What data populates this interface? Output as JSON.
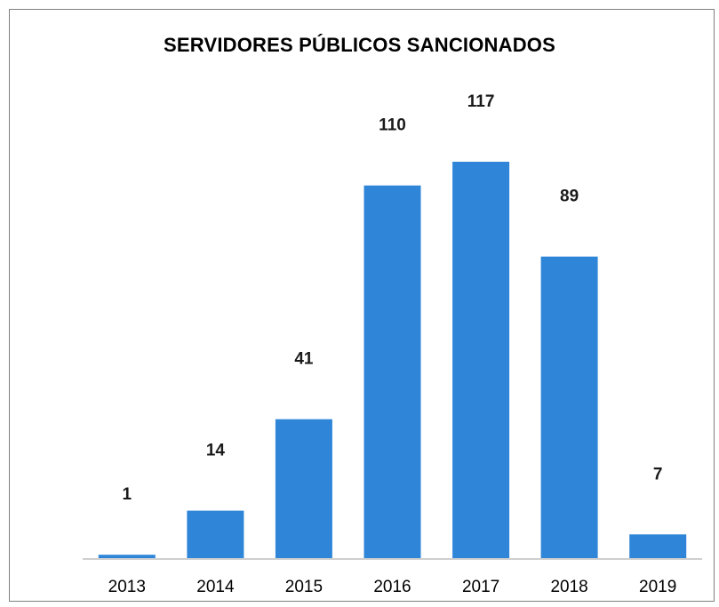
{
  "chart_data": {
    "type": "bar",
    "title": "SERVIDORES PÚBLICOS SANCIONADOS",
    "categories": [
      "2013",
      "2014",
      "2015",
      "2016",
      "2017",
      "2018",
      "2019"
    ],
    "values": [
      1,
      14,
      41,
      110,
      117,
      89,
      7
    ],
    "data_labels": [
      "1",
      "14",
      "41",
      "110",
      "117",
      "89",
      "7"
    ],
    "ylim": [
      0,
      130
    ],
    "grid": false,
    "legend": "none",
    "bar_color": "#2f86d8",
    "axis_color": "#bfbfbf"
  }
}
